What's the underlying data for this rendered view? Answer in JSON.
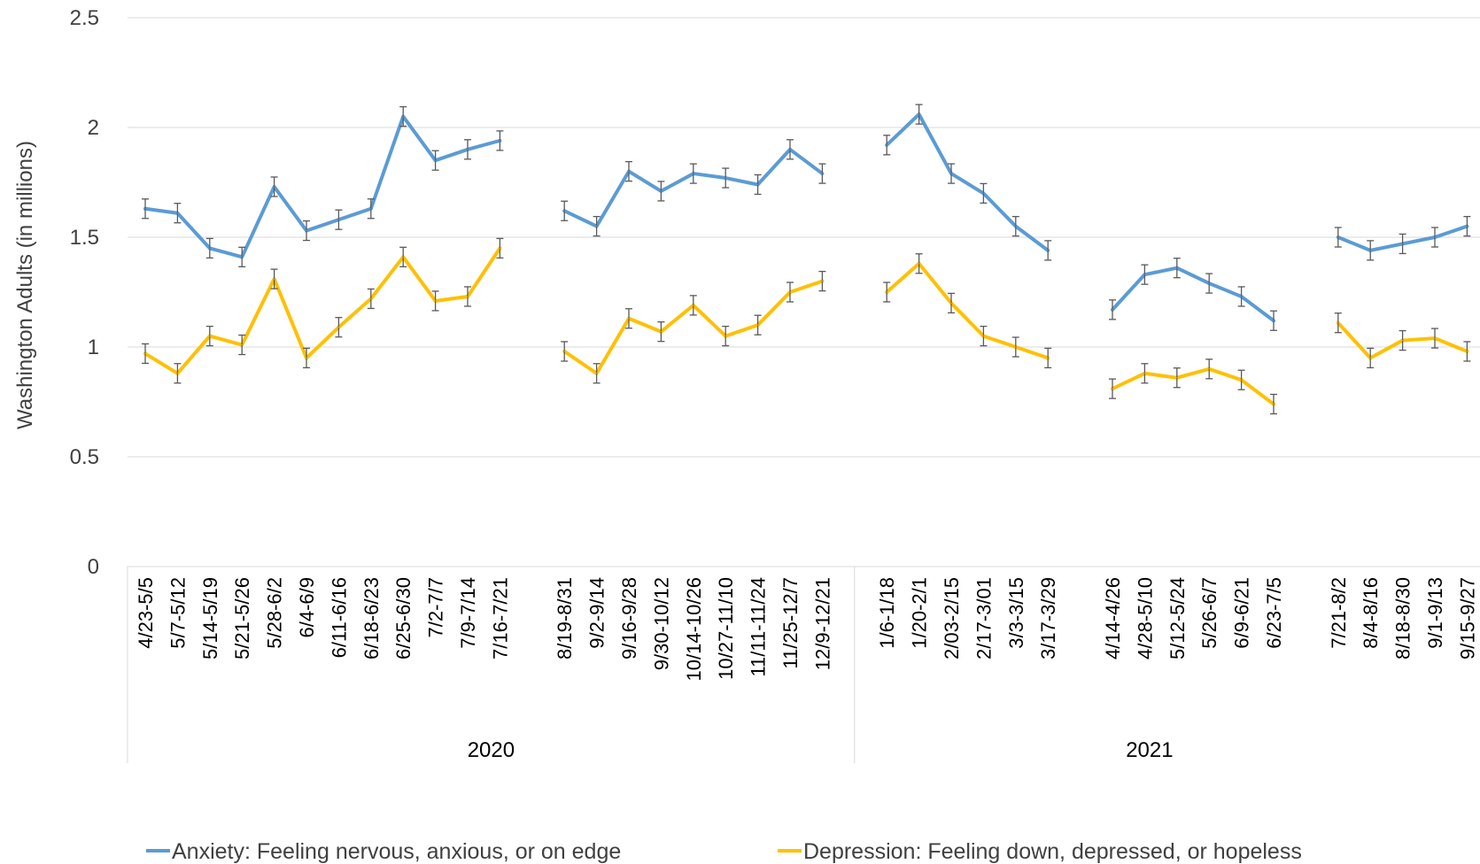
{
  "chart_data": {
    "type": "line",
    "ylabel": "Washington Adults (in millions)",
    "ylim": [
      0,
      2.5
    ],
    "yticks": [
      "0",
      "0.5",
      "1",
      "1.5",
      "2",
      "2.5"
    ],
    "grid": true,
    "legend_position": "bottom",
    "groups": [
      {
        "year": "2020",
        "categories": [
          "4/23-5/5",
          "5/7-5/12",
          "5/14-5/19",
          "5/21-5/26",
          "5/28-6/2",
          "6/4-6/9",
          "6/11-6/16",
          "6/18-6/23",
          "6/25-6/30",
          "7/2-7/7",
          "7/9-7/14",
          "7/16-7/21"
        ]
      },
      {
        "year": "2020",
        "categories": [
          "8/19-8/31",
          "9/2-9/14",
          "9/16-9/28",
          "9/30-10/12",
          "10/14-10/26",
          "10/27-11/10",
          "11/11-11/24",
          "11/25-12/7",
          "12/9-12/21"
        ]
      },
      {
        "year": "2021",
        "categories": [
          "1/6-1/18",
          "1/20-2/1",
          "2/03-2/15",
          "2/17-3/01",
          "3/3-3/15",
          "3/17-3/29"
        ]
      },
      {
        "year": "2021",
        "categories": [
          "4/14-4/26",
          "4/28-5/10",
          "5/12-5/24",
          "5/26-6/7",
          "6/9-6/21",
          "6/23-7/5"
        ]
      },
      {
        "year": "2021",
        "categories": [
          "7/21-8/2",
          "8/4-8/16",
          "8/18-8/30",
          "9/1-9/13",
          "9/15-9/27"
        ]
      }
    ],
    "years": [
      "2020",
      "2021"
    ],
    "series": [
      {
        "name": "Anxiety: Feeling nervous, anxious, or on edge",
        "color": "#5B9BD5",
        "values": [
          [
            1.63,
            1.61,
            1.45,
            1.41,
            1.73,
            1.53,
            1.58,
            1.63,
            2.05,
            1.85,
            1.9,
            1.94
          ],
          [
            1.62,
            1.55,
            1.8,
            1.71,
            1.79,
            1.77,
            1.74,
            1.9,
            1.79
          ],
          [
            1.92,
            2.06,
            1.79,
            1.7,
            1.55,
            1.44
          ],
          [
            1.17,
            1.33,
            1.36,
            1.29,
            1.23,
            1.12
          ],
          [
            1.5,
            1.44,
            1.47,
            1.5,
            1.55
          ]
        ]
      },
      {
        "name": "Depression: Feeling down, depressed, or hopeless",
        "color": "#FFC000",
        "values": [
          [
            0.97,
            0.88,
            1.05,
            1.01,
            1.31,
            0.95,
            1.09,
            1.22,
            1.41,
            1.21,
            1.23,
            1.45
          ],
          [
            0.98,
            0.88,
            1.13,
            1.07,
            1.19,
            1.05,
            1.1,
            1.25,
            1.3
          ],
          [
            1.25,
            1.38,
            1.2,
            1.05,
            1.0,
            0.95
          ],
          [
            0.81,
            0.88,
            0.86,
            0.9,
            0.85,
            0.74
          ],
          [
            1.11,
            0.95,
            1.03,
            1.04,
            0.98
          ]
        ]
      }
    ]
  }
}
